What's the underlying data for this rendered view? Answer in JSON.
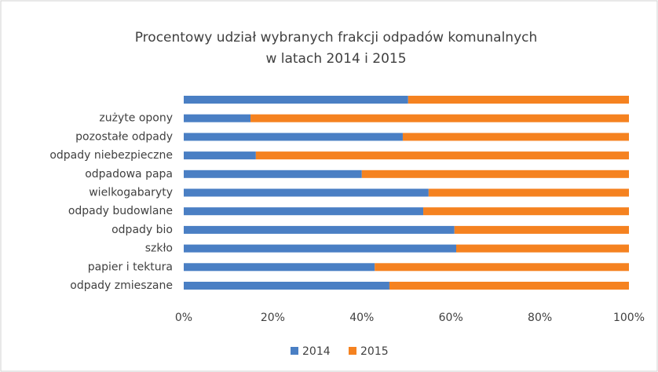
{
  "chart_data": {
    "type": "stacked_bar_horizontal",
    "title": "Procentowy udział  wybranych frakcji odpadów komunalnych",
    "subtitle": "w latach 2014 i 2015",
    "categories": [
      null,
      "zużyte opony",
      "pozostałe odpady",
      "odpady niebezpieczne",
      "odpadowa papa",
      "wielkogabaryty",
      "odpady budowlane",
      "odpady bio",
      "szkło",
      "papier i tektura",
      "odpady zmieszane"
    ],
    "series": [
      {
        "name": "2014",
        "color": "#4a7fc4",
        "values": [
          50.4,
          15.0,
          49.2,
          16.2,
          40.0,
          55.0,
          53.8,
          60.8,
          61.2,
          42.9,
          46.2
        ]
      },
      {
        "name": "2015",
        "color": "#f58220",
        "values": [
          49.6,
          85.0,
          50.8,
          83.8,
          60.0,
          45.0,
          46.2,
          39.2,
          38.8,
          57.1,
          53.8
        ]
      }
    ],
    "xlim": [
      0,
      100
    ],
    "xticks": [
      {
        "value": 0,
        "label": "0%"
      },
      {
        "value": 20,
        "label": "20%"
      },
      {
        "value": 40,
        "label": "40%"
      },
      {
        "value": 60,
        "label": "60%"
      },
      {
        "value": 80,
        "label": "80%"
      },
      {
        "value": 100,
        "label": "100%"
      }
    ],
    "legend": "bottom"
  }
}
